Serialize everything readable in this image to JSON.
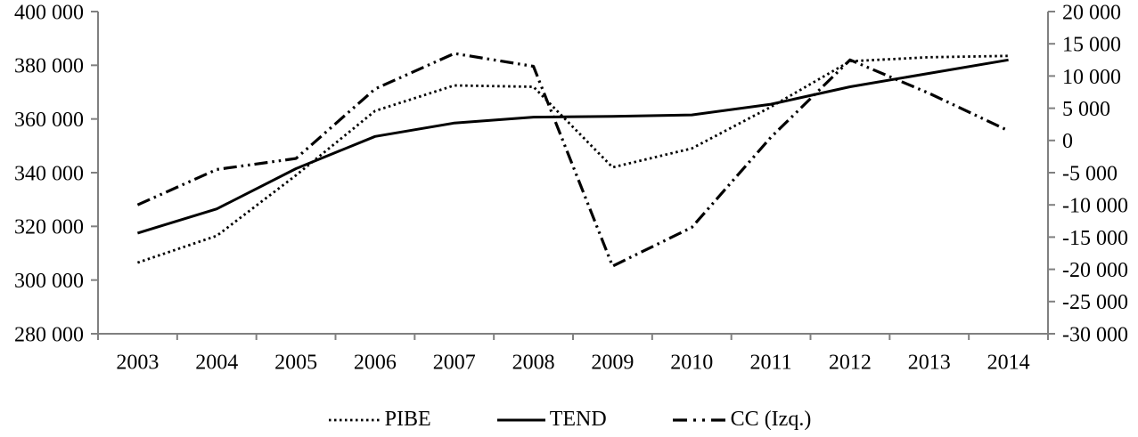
{
  "chart_data": {
    "type": "line",
    "title": "",
    "xlabel": "",
    "ylabel_left": "",
    "ylabel_right": "",
    "grid": false,
    "legend_position": "bottom",
    "categories": [
      "2003",
      "2004",
      "2005",
      "2006",
      "2007",
      "2008",
      "2009",
      "2010",
      "2011",
      "2012",
      "2013",
      "2014"
    ],
    "series": [
      {
        "name": "PIBE",
        "axis": "left",
        "style": "dotted",
        "values": [
          306500,
          316500,
          339000,
          363000,
          372500,
          372000,
          342000,
          349000,
          364500,
          381500,
          383000,
          383500
        ]
      },
      {
        "name": "TEND",
        "axis": "left",
        "style": "solid",
        "values": [
          317500,
          326500,
          341500,
          353500,
          358500,
          360700,
          361000,
          361500,
          365500,
          372000,
          377000,
          382000
        ]
      },
      {
        "name": "CC (Izq.)",
        "axis": "right",
        "style": "dash-dot-dot",
        "values": [
          -10000,
          -4500,
          -2800,
          8000,
          13500,
          11500,
          -19500,
          -13500,
          500,
          12500,
          7300,
          1500
        ]
      }
    ],
    "left_axis": {
      "min": 280000,
      "max": 400000,
      "step": 20000,
      "tick_labels": [
        "400 000",
        "380 000",
        "360 000",
        "340 000",
        "320 000",
        "300 000",
        "280 000"
      ]
    },
    "right_axis": {
      "min": -30000,
      "max": 20000,
      "step": 5000,
      "tick_labels": [
        "20 000",
        "15 000",
        "10 000",
        "5 000",
        "0",
        "-5 000",
        "-10 000",
        "-15 000",
        "-20 000",
        "-25 000",
        "-30 000"
      ]
    },
    "colors": {
      "line": "#000000",
      "axis": "#808080",
      "text": "#000000",
      "background": "#ffffff"
    }
  }
}
